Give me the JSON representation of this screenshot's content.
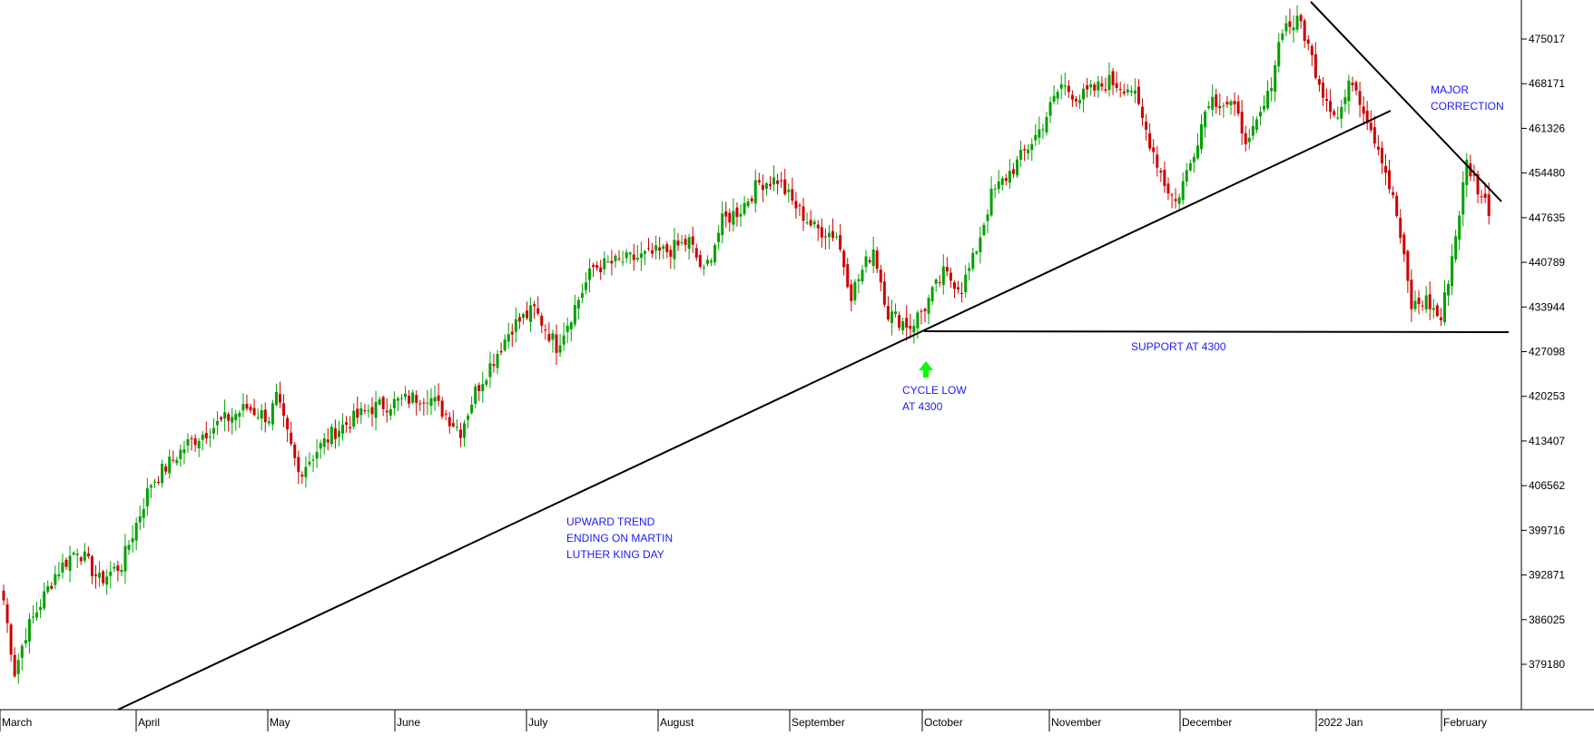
{
  "chart_data": {
    "type": "candlestick",
    "title": "",
    "xlabel": "",
    "ylabel": "",
    "y_axis_position": "right",
    "ylim": [
      372500,
      481000
    ],
    "y_ticks": [
      475017,
      468171,
      461326,
      454480,
      447635,
      440789,
      433944,
      427098,
      420253,
      413407,
      406562,
      399716,
      392871,
      386025,
      379180
    ],
    "x_months": [
      "March",
      "April",
      "May",
      "June",
      "July",
      "August",
      "September",
      "October",
      "November",
      "December",
      "2022 Jan",
      "February"
    ],
    "grid": false,
    "colors": {
      "up": "#00a000",
      "down": "#cc0000",
      "line": "#000000",
      "annotation": "#1a1aff",
      "arrow": "#00ff00"
    },
    "waypoints": [
      [
        0,
        389000
      ],
      [
        3,
        378000
      ],
      [
        6,
        384000
      ],
      [
        14,
        393000
      ],
      [
        20,
        397000
      ],
      [
        26,
        392000
      ],
      [
        32,
        394500
      ],
      [
        40,
        407000
      ],
      [
        50,
        413000
      ],
      [
        58,
        416000
      ],
      [
        66,
        418500
      ],
      [
        72,
        417000
      ],
      [
        74,
        420000
      ],
      [
        80,
        408500
      ],
      [
        85,
        412000
      ],
      [
        90,
        415000
      ],
      [
        100,
        418500
      ],
      [
        115,
        420500
      ],
      [
        124,
        415000
      ],
      [
        128,
        421000
      ],
      [
        133,
        426000
      ],
      [
        138,
        431000
      ],
      [
        144,
        433500
      ],
      [
        150,
        428000
      ],
      [
        155,
        434000
      ],
      [
        160,
        440000
      ],
      [
        168,
        441000
      ],
      [
        180,
        442500
      ],
      [
        186,
        444000
      ],
      [
        190,
        439000
      ],
      [
        195,
        447000
      ],
      [
        200,
        449000
      ],
      [
        205,
        453000
      ],
      [
        210,
        453500
      ],
      [
        214,
        450000
      ],
      [
        220,
        446000
      ],
      [
        226,
        445000
      ],
      [
        230,
        436000
      ],
      [
        236,
        443000
      ],
      [
        240,
        433000
      ],
      [
        246,
        431000
      ],
      [
        250,
        434000
      ],
      [
        255,
        439000
      ],
      [
        260,
        437000
      ],
      [
        263,
        441000
      ],
      [
        268,
        451000
      ],
      [
        275,
        456000
      ],
      [
        281,
        461000
      ],
      [
        287,
        468000
      ],
      [
        292,
        466000
      ],
      [
        300,
        468500
      ],
      [
        306,
        467500
      ],
      [
        310,
        461000
      ],
      [
        315,
        453000
      ],
      [
        318,
        450000
      ],
      [
        322,
        456000
      ],
      [
        327,
        466000
      ],
      [
        333,
        465000
      ],
      [
        338,
        459000
      ],
      [
        343,
        466000
      ],
      [
        347,
        477000
      ],
      [
        352,
        477500
      ],
      [
        355,
        472000
      ],
      [
        358,
        467000
      ],
      [
        362,
        463000
      ],
      [
        366,
        469000
      ],
      [
        370,
        463000
      ],
      [
        374,
        457000
      ],
      [
        378,
        448000
      ],
      [
        382,
        434000
      ],
      [
        386,
        435000
      ],
      [
        390,
        432000
      ],
      [
        394,
        445000
      ],
      [
        397,
        456000
      ],
      [
        401,
        451000
      ],
      [
        403,
        449000
      ]
    ],
    "annotations": [
      {
        "lines": [
          "UPWARD TREND",
          "ENDING ON MARTIN",
          "LUTHER KING DAY"
        ]
      },
      {
        "lines": [
          "CYCLE LOW",
          "AT 4300"
        ]
      },
      {
        "lines": [
          "SUPPORT AT 4300"
        ]
      },
      {
        "lines": [
          "MAJOR",
          "CORRECTION"
        ]
      }
    ]
  }
}
